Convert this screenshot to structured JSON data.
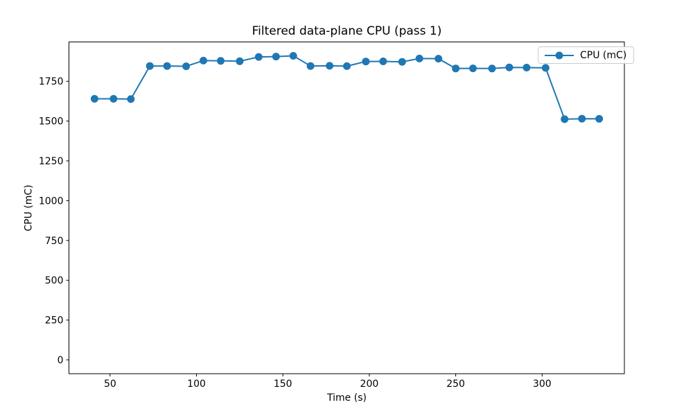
{
  "figure": {
    "background": "#ffffff"
  },
  "chart_data": {
    "type": "line",
    "title": "Filtered data-plane CPU (pass 1)",
    "xlabel": "Time (s)",
    "ylabel": "CPU (mC)",
    "grid": false,
    "legend_position": "upper right",
    "xlim": [
      26.2,
      347.6
    ],
    "ylim": [
      -87,
      1997
    ],
    "xticks": [
      50,
      100,
      150,
      200,
      250,
      300
    ],
    "yticks": [
      0,
      250,
      500,
      750,
      1000,
      1250,
      1500,
      1750
    ],
    "series": [
      {
        "name": "CPU (mC)",
        "color": "#1f77b4",
        "marker": "circle",
        "x": [
          41,
          52,
          62,
          73,
          83,
          94,
          104,
          114,
          125,
          136,
          146,
          156,
          166,
          177,
          187,
          198,
          208,
          219,
          229,
          240,
          250,
          260,
          271,
          281,
          291,
          302,
          313,
          323,
          333
        ],
        "y": [
          1640,
          1640,
          1638,
          1846,
          1846,
          1844,
          1880,
          1878,
          1876,
          1903,
          1905,
          1910,
          1846,
          1847,
          1845,
          1874,
          1875,
          1872,
          1893,
          1892,
          1830,
          1831,
          1830,
          1837,
          1836,
          1834,
          1512,
          1515,
          1514
        ]
      }
    ]
  }
}
